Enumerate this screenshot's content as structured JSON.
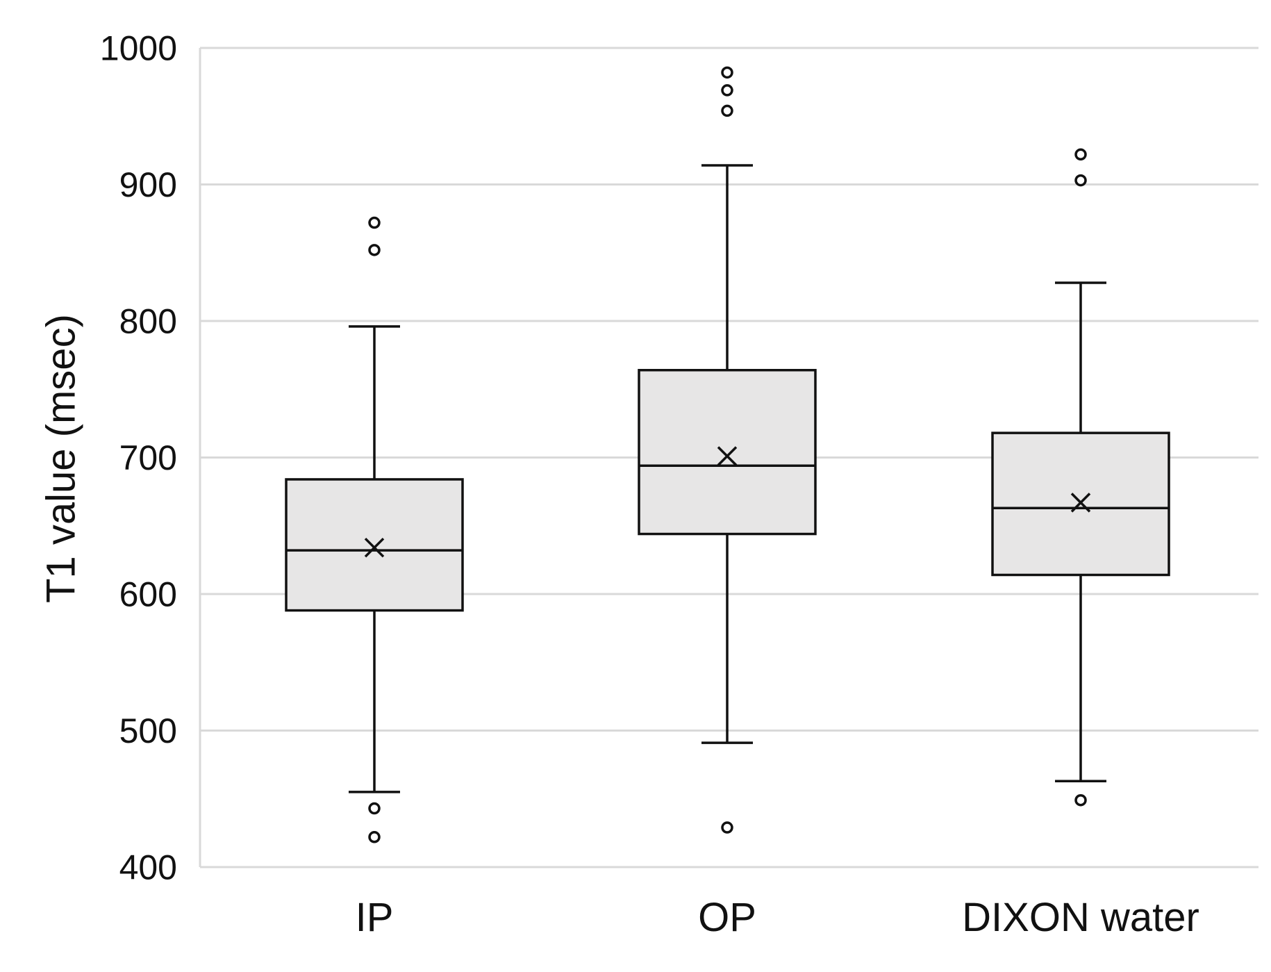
{
  "chart_data": {
    "type": "boxplot",
    "title": "",
    "xlabel": "",
    "ylabel": "T1 value (msec)",
    "ylim": [
      400,
      1000
    ],
    "yticks": [
      400,
      500,
      600,
      700,
      800,
      900,
      1000
    ],
    "yticks_text": [
      "400",
      "500",
      "600",
      "700",
      "800",
      "900",
      "1000"
    ],
    "grid": true,
    "categories": [
      "IP",
      "OP",
      "DIXON water"
    ],
    "series": [
      {
        "name": "IP",
        "whisker_low": 455,
        "q1": 588,
        "median": 632,
        "mean": 634,
        "q3": 684,
        "whisker_high": 796,
        "outliers": [
          422,
          443,
          852,
          872
        ]
      },
      {
        "name": "OP",
        "whisker_low": 491,
        "q1": 644,
        "median": 694,
        "mean": 701,
        "q3": 764,
        "whisker_high": 914,
        "outliers": [
          429,
          954,
          969,
          982
        ]
      },
      {
        "name": "DIXON water",
        "whisker_low": 463,
        "q1": 614,
        "median": 663,
        "mean": 667,
        "q3": 718,
        "whisker_high": 828,
        "outliers": [
          449,
          903,
          922
        ]
      }
    ]
  },
  "colors": {
    "box_fill": "#e7e6e6",
    "stroke": "#111111",
    "grid": "#d9d9d9"
  }
}
